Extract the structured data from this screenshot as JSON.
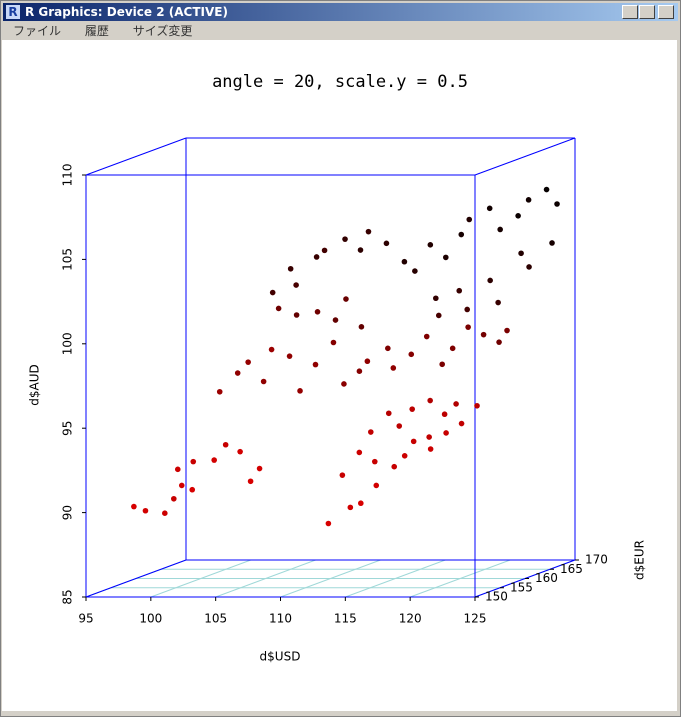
{
  "window": {
    "title": "R Graphics: Device 2 (ACTIVE)",
    "menu": [
      "ファイル",
      "履歴",
      "サイズ変更"
    ]
  },
  "chart_data": {
    "type": "scatter3d",
    "title": "angle = 20, scale.y = 0.5",
    "xlabel": "d$USD",
    "ylabel": "d$EUR",
    "zlabel": "d$AUD",
    "x": [
      98.5,
      99.2,
      100.5,
      101,
      102,
      102.5,
      101.5,
      103,
      104.5,
      105,
      106.5,
      107.5,
      108,
      113.5,
      115,
      116,
      114,
      115.5,
      116.5,
      117,
      118,
      119,
      119.5,
      120.5,
      121,
      122,
      123,
      121.5,
      119,
      117,
      116,
      118,
      120,
      122,
      124,
      103,
      104,
      105,
      106,
      107,
      108,
      109,
      110,
      111,
      112,
      113,
      114,
      115,
      116,
      117,
      118,
      119,
      120,
      121,
      122,
      123,
      124,
      109,
      110,
      111,
      112,
      106,
      107,
      104,
      105,
      106,
      107,
      108,
      109,
      110,
      111,
      112,
      113,
      114,
      115,
      116,
      117,
      118,
      119,
      120,
      121,
      122,
      123,
      124,
      120,
      118,
      116,
      122,
      124,
      123,
      121,
      119,
      117
    ],
    "y": [
      150.5,
      151,
      151.5,
      152,
      151,
      152,
      151.5,
      150.5,
      151,
      152,
      151,
      150.5,
      151,
      150.5,
      151,
      150.5,
      152,
      151.5,
      152,
      151,
      152,
      151.5,
      152,
      152.5,
      151.5,
      152,
      152.5,
      153,
      153,
      153.5,
      152.5,
      153,
      154,
      154,
      153,
      156,
      157,
      156.5,
      157,
      156,
      157,
      156.5,
      157,
      158,
      157.5,
      158,
      157,
      158.5,
      157,
      158,
      158.5,
      159,
      158.5,
      159,
      159.5,
      160,
      159,
      160,
      161,
      160.5,
      161,
      160,
      161,
      164,
      165,
      163.5,
      165,
      164,
      165.5,
      166,
      165,
      166,
      167,
      166.5,
      167,
      167.5,
      168,
      167,
      168.5,
      168,
      169,
      168.5,
      169.5,
      169,
      166,
      165,
      165.5,
      167,
      168,
      166,
      165,
      164,
      163.5
    ],
    "z": [
      90.3,
      90.0,
      89.8,
      90.6,
      91.5,
      92.8,
      92.4,
      91.3,
      93.0,
      93.8,
      93.5,
      91.8,
      92.5,
      89.3,
      90.2,
      90.5,
      92.0,
      93.4,
      92.8,
      91.5,
      92.5,
      93.2,
      94.0,
      94.2,
      93.6,
      94.5,
      95.0,
      95.5,
      95.8,
      95.5,
      94.5,
      94.8,
      96.2,
      96.0,
      96.0,
      96.5,
      97.5,
      98.2,
      97.0,
      99.0,
      98.5,
      96.5,
      98.0,
      99.2,
      96.8,
      97.5,
      98.2,
      98.8,
      97.8,
      98.5,
      99.5,
      97.8,
      98.8,
      100.0,
      99.5,
      99.0,
      99.8,
      100.8,
      100.2,
      101.5,
      99.8,
      101.0,
      100.5,
      101.5,
      102.8,
      102.0,
      103.5,
      104.0,
      104.5,
      103.8,
      105.0,
      104.2,
      103.0,
      102.5,
      104.0,
      103.2,
      104.5,
      105.5,
      106.0,
      104.8,
      105.5,
      106.5,
      107.0,
      106.2,
      102.0,
      101.5,
      101.0,
      103.5,
      104.0,
      102.8,
      100.8,
      100.5,
      100.2
    ],
    "xlim": [
      95,
      125
    ],
    "ylim": [
      150,
      170
    ],
    "zlim": [
      85,
      110
    ],
    "xticks": [
      95,
      100,
      105,
      110,
      115,
      120,
      125
    ],
    "yticks": [
      150,
      155,
      160,
      165,
      170
    ],
    "zticks": [
      85,
      90,
      95,
      100,
      105,
      110
    ],
    "box_color": "#0000ff",
    "grid_color": "#9fd8d8",
    "grid": true,
    "color_front": "#dd0000",
    "color_back": "#000000"
  }
}
